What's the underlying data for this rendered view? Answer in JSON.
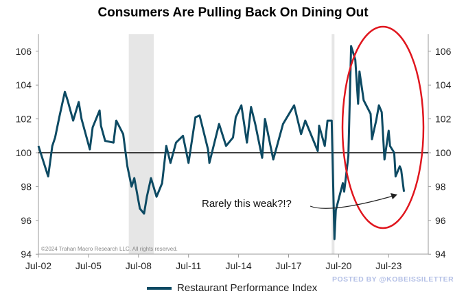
{
  "chart_data": {
    "type": "line",
    "title": "Consumers Are Pulling Back On Dining Out",
    "xlabel": "",
    "ylabel": "",
    "x_tick_labels": [
      "Jul-02",
      "Jul-05",
      "Jul-08",
      "Jul-11",
      "Jul-14",
      "Jul-17",
      "Jul-20",
      "Jul-23"
    ],
    "y_tick_labels": [
      "94",
      "96",
      "98",
      "100",
      "102",
      "104",
      "106"
    ],
    "ylim": [
      94,
      107
    ],
    "xlim": [
      "2002-07",
      "2025-12"
    ],
    "reference_line": 100,
    "recession_shading": [
      [
        "2007-12",
        "2009-06"
      ],
      [
        "2020-02",
        "2020-04"
      ]
    ],
    "legend_position": "bottom",
    "grid": false,
    "line_color": "#0d4a63",
    "highlight_color": "#e0161e",
    "series": [
      {
        "name": "Restaurant Performance Index",
        "points": [
          [
            "2002-07",
            100.4
          ],
          [
            "2003-02",
            98.6
          ],
          [
            "2003-05",
            100.4
          ],
          [
            "2003-07",
            100.9
          ],
          [
            "2003-10",
            102.1
          ],
          [
            "2004-02",
            103.6
          ],
          [
            "2004-04",
            103.1
          ],
          [
            "2004-08",
            101.9
          ],
          [
            "2004-12",
            103.0
          ],
          [
            "2005-02",
            102.0
          ],
          [
            "2005-08",
            100.2
          ],
          [
            "2005-10",
            101.5
          ],
          [
            "2006-03",
            102.5
          ],
          [
            "2006-04",
            101.6
          ],
          [
            "2006-07",
            100.7
          ],
          [
            "2007-01",
            100.6
          ],
          [
            "2007-03",
            101.9
          ],
          [
            "2007-08",
            101.1
          ],
          [
            "2007-11",
            99.2
          ],
          [
            "2008-02",
            98.0
          ],
          [
            "2008-04",
            98.5
          ],
          [
            "2008-08",
            96.7
          ],
          [
            "2008-11",
            96.4
          ],
          [
            "2009-01",
            97.4
          ],
          [
            "2009-04",
            98.5
          ],
          [
            "2009-08",
            97.4
          ],
          [
            "2009-12",
            98.2
          ],
          [
            "2010-03",
            100.4
          ],
          [
            "2010-06",
            99.4
          ],
          [
            "2010-10",
            100.6
          ],
          [
            "2011-03",
            101.0
          ],
          [
            "2011-07",
            99.4
          ],
          [
            "2011-12",
            102.1
          ],
          [
            "2012-03",
            102.2
          ],
          [
            "2012-09",
            100.2
          ],
          [
            "2012-10",
            99.4
          ],
          [
            "2013-05",
            101.7
          ],
          [
            "2013-10",
            100.4
          ],
          [
            "2014-03",
            100.9
          ],
          [
            "2014-05",
            102.1
          ],
          [
            "2014-09",
            102.8
          ],
          [
            "2015-01",
            100.6
          ],
          [
            "2015-04",
            102.7
          ],
          [
            "2015-07",
            101.7
          ],
          [
            "2015-12",
            99.7
          ],
          [
            "2016-02",
            102.0
          ],
          [
            "2016-08",
            99.6
          ],
          [
            "2017-03",
            101.7
          ],
          [
            "2017-11",
            102.8
          ],
          [
            "2018-04",
            101.1
          ],
          [
            "2018-07",
            101.9
          ],
          [
            "2019-04",
            100.1
          ],
          [
            "2019-05",
            101.6
          ],
          [
            "2019-09",
            100.4
          ],
          [
            "2019-11",
            101.9
          ],
          [
            "2020-02",
            101.9
          ],
          [
            "2020-04",
            94.9
          ],
          [
            "2020-05",
            96.6
          ],
          [
            "2020-10",
            98.2
          ],
          [
            "2020-11",
            97.7
          ],
          [
            "2021-02",
            99.8
          ],
          [
            "2021-04",
            106.3
          ],
          [
            "2021-07",
            105.5
          ],
          [
            "2021-09",
            102.9
          ],
          [
            "2021-10",
            104.8
          ],
          [
            "2022-01",
            103.1
          ],
          [
            "2022-06",
            102.3
          ],
          [
            "2022-07",
            100.8
          ],
          [
            "2022-10",
            101.9
          ],
          [
            "2022-12",
            102.8
          ],
          [
            "2023-02",
            102.4
          ],
          [
            "2023-04",
            99.6
          ],
          [
            "2023-07",
            101.3
          ],
          [
            "2023-08",
            100.4
          ],
          [
            "2023-11",
            100.0
          ],
          [
            "2023-12",
            98.6
          ],
          [
            "2024-03",
            99.2
          ],
          [
            "2024-04",
            99.0
          ],
          [
            "2024-06",
            97.7
          ]
        ]
      }
    ],
    "annotations": [
      "Rarely this weak?!?"
    ],
    "copyright": "©2024 Trahan Macro Research LLC. All rights reserved."
  },
  "watermark": "POSTED BY @KOBEISSILETTER"
}
